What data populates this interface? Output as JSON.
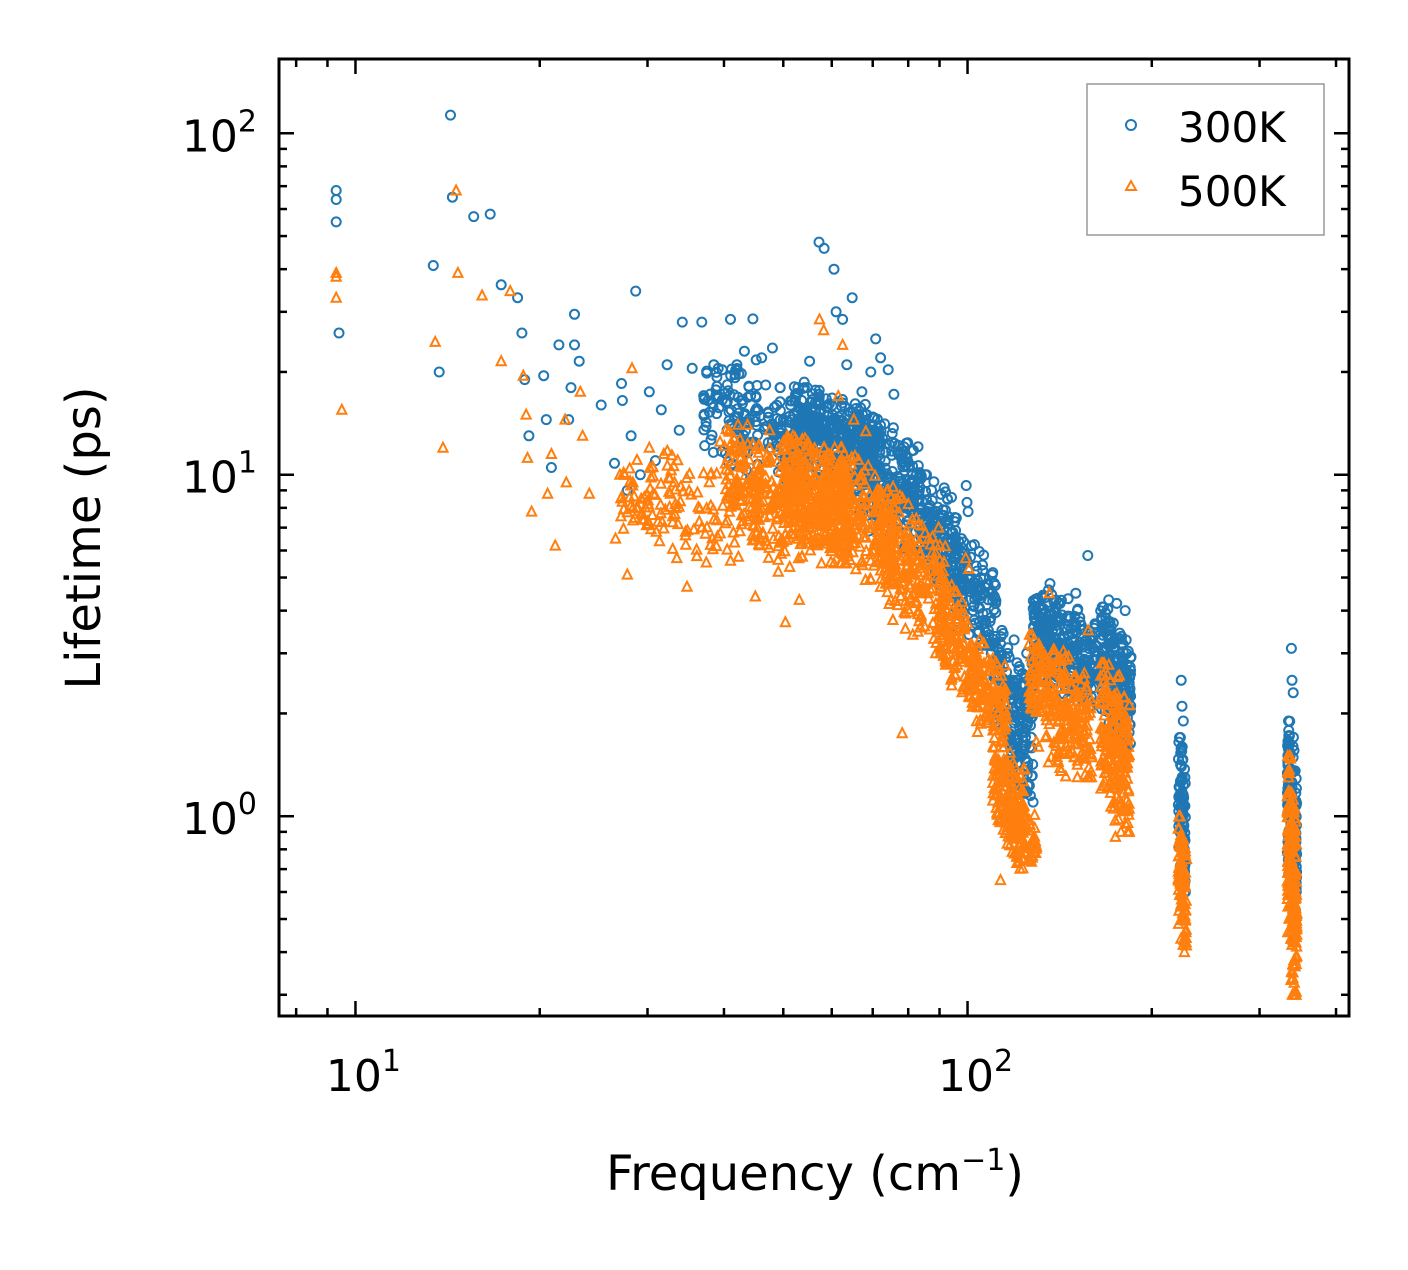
{
  "chart_data": {
    "type": "scatter",
    "title": "",
    "xlabel": "Frequency (cm",
    "xlabel_sup": "−1",
    "xlabel_end": ")",
    "ylabel": "Lifetime (ps)",
    "xscale": "log",
    "yscale": "log",
    "xlim": [
      7.5,
      420
    ],
    "ylim": [
      0.26,
      165
    ],
    "x_ticks": [
      {
        "value": 10,
        "base": "10",
        "exp": "1"
      },
      {
        "value": 100,
        "base": "10",
        "exp": "2"
      }
    ],
    "y_ticks": [
      {
        "value": 1,
        "base": "10",
        "exp": "0"
      },
      {
        "value": 10,
        "base": "10",
        "exp": "1"
      },
      {
        "value": 100,
        "base": "10",
        "exp": "2"
      }
    ],
    "legend_position": "top-right",
    "series": [
      {
        "name": "300K",
        "marker": "circle-open",
        "color": "#1f77b4",
        "points": [
          [
            9.3,
            68
          ],
          [
            9.3,
            64
          ],
          [
            9.3,
            55
          ],
          [
            9.4,
            26
          ],
          [
            13.4,
            41
          ],
          [
            13.7,
            20
          ],
          [
            14.3,
            113
          ],
          [
            14.4,
            65
          ],
          [
            15.6,
            57
          ],
          [
            16.6,
            58
          ],
          [
            17.3,
            36
          ],
          [
            18.4,
            33
          ],
          [
            18.7,
            26
          ],
          [
            18.9,
            19
          ],
          [
            19.2,
            13
          ],
          [
            20.3,
            19.5
          ],
          [
            20.5,
            14.5
          ],
          [
            20.9,
            10.5
          ],
          [
            21.5,
            24
          ],
          [
            22.3,
            14.5
          ],
          [
            22.5,
            18
          ],
          [
            22.8,
            29.5
          ],
          [
            22.8,
            24
          ],
          [
            23.2,
            21.5
          ],
          [
            25.2,
            16
          ],
          [
            26.5,
            10.8
          ],
          [
            27.2,
            18.5
          ],
          [
            27.3,
            16.5
          ],
          [
            27.8,
            9
          ],
          [
            28.2,
            13
          ],
          [
            28.7,
            34.5
          ],
          [
            29.2,
            10
          ],
          [
            30.2,
            17.5
          ],
          [
            30.9,
            11
          ],
          [
            31.6,
            15.5
          ],
          [
            32.3,
            21
          ],
          [
            33.8,
            13.5
          ],
          [
            34.2,
            28
          ],
          [
            35.5,
            20.5
          ],
          [
            36.8,
            28
          ],
          [
            38.5,
            21
          ],
          [
            39.2,
            17
          ],
          [
            41.0,
            28.5
          ],
          [
            42.0,
            21
          ],
          [
            43.2,
            23
          ],
          [
            44.6,
            28.6
          ],
          [
            46.1,
            22
          ],
          [
            48.0,
            23.5
          ],
          [
            49.4,
            18
          ],
          [
            52.0,
            15
          ],
          [
            55.2,
            21.5
          ],
          [
            57.2,
            48
          ],
          [
            58.3,
            46
          ],
          [
            60.5,
            40
          ],
          [
            61.0,
            30
          ],
          [
            62.5,
            28.5
          ],
          [
            63.5,
            21
          ],
          [
            64.8,
            33
          ],
          [
            67.2,
            17.5
          ],
          [
            69.5,
            20
          ],
          [
            70.8,
            25
          ],
          [
            72.1,
            22
          ],
          [
            74.2,
            20.3
          ],
          [
            75.8,
            17.2
          ],
          [
            99.5,
            9.3
          ],
          [
            99.8,
            8.3
          ],
          [
            100.2,
            7.8
          ],
          [
            101.5,
            6.2
          ],
          [
            108.5,
            4.5
          ],
          [
            113.2,
            3.2
          ],
          [
            120.5,
            2.5
          ],
          [
            125.1,
            2.3
          ],
          [
            136.4,
            4.8
          ],
          [
            150.3,
            4.5
          ],
          [
            157.2,
            5.8
          ],
          [
            170.1,
            4.3
          ],
          [
            175.3,
            4.2
          ],
          [
            181.0,
            4.0
          ],
          [
            223.4,
            2.5
          ],
          [
            224.1,
            2.1
          ],
          [
            225.2,
            1.9
          ],
          [
            338.2,
            3.1
          ],
          [
            339.0,
            2.5
          ],
          [
            340.5,
            2.3
          ]
        ],
        "clusters": [
          {
            "x": [
              37,
              56
            ],
            "y": [
              9,
              22
            ],
            "n": 220
          },
          {
            "x": [
              52,
              72
            ],
            "y": [
              9,
              18
            ],
            "n": 380
          },
          {
            "x": [
              66,
              84
            ],
            "y": [
              6,
              15
            ],
            "n": 240
          },
          {
            "x": [
              82,
              96
            ],
            "y": [
              4.5,
              10
            ],
            "n": 160
          },
          {
            "x": [
              95,
              112
            ],
            "y": [
              3,
              6.5
            ],
            "n": 140
          },
          {
            "x": [
              110,
              128
            ],
            "y": [
              1.5,
              3.5
            ],
            "n": 130
          },
          {
            "x": [
              116,
              128
            ],
            "y": [
              1.1,
              1.9
            ],
            "n": 50
          },
          {
            "x": [
              128,
              162
            ],
            "y": [
              2.1,
              4.6
            ],
            "n": 300
          },
          {
            "x": [
              165,
              185
            ],
            "y": [
              1.6,
              4.1
            ],
            "n": 240
          },
          {
            "x": [
              221,
              227
            ],
            "y": [
              0.6,
              1.7
            ],
            "n": 90
          },
          {
            "x": [
              333,
              345
            ],
            "y": [
              0.5,
              1.9
            ],
            "n": 200
          }
        ]
      },
      {
        "name": "500K",
        "marker": "triangle-open",
        "color": "#ff7f0e",
        "points": [
          [
            9.3,
            39
          ],
          [
            9.3,
            38
          ],
          [
            9.3,
            33
          ],
          [
            9.5,
            15.5
          ],
          [
            13.5,
            24.5
          ],
          [
            13.9,
            12
          ],
          [
            14.6,
            68
          ],
          [
            14.7,
            39
          ],
          [
            16.1,
            33.5
          ],
          [
            17.3,
            21.5
          ],
          [
            17.9,
            34.5
          ],
          [
            18.8,
            19.5
          ],
          [
            19.0,
            15
          ],
          [
            19.1,
            11.2
          ],
          [
            19.4,
            7.8
          ],
          [
            20.6,
            8.8
          ],
          [
            20.9,
            11.5
          ],
          [
            21.2,
            6.2
          ],
          [
            22.0,
            14.5
          ],
          [
            22.1,
            9.5
          ],
          [
            23.3,
            17.5
          ],
          [
            23.5,
            13
          ],
          [
            24.1,
            8.8
          ],
          [
            26.6,
            6.5
          ],
          [
            27.8,
            5.1
          ],
          [
            28.3,
            20.5
          ],
          [
            29.3,
            8.5
          ],
          [
            30.2,
            12
          ],
          [
            31.9,
            11.5
          ],
          [
            33.5,
            5.7
          ],
          [
            34.8,
            4.7
          ],
          [
            36.8,
            7
          ],
          [
            39.4,
            12.5
          ],
          [
            41.0,
            5.6
          ],
          [
            43.0,
            9
          ],
          [
            45.0,
            4.4
          ],
          [
            47.5,
            13.5
          ],
          [
            50.4,
            3.7
          ],
          [
            53.1,
            4.3
          ],
          [
            57.3,
            28.5
          ],
          [
            58.2,
            26.5
          ],
          [
            61.5,
            17
          ],
          [
            62.5,
            24
          ],
          [
            65.2,
            14.5
          ],
          [
            68.2,
            13.4
          ],
          [
            78.2,
            1.75
          ],
          [
            81.4,
            3.4
          ],
          [
            91.1,
            4.6
          ],
          [
            92.5,
            4
          ],
          [
            99.3,
            5.7
          ],
          [
            100.5,
            5.3
          ],
          [
            106.5,
            2.5
          ],
          [
            113.2,
            0.65
          ],
          [
            117.2,
            1.4
          ],
          [
            120.3,
            0.76
          ],
          [
            136.0,
            4.5
          ],
          [
            157.4,
            3.5
          ],
          [
            171.2,
            2.5
          ],
          [
            174.4,
            0.87
          ],
          [
            181.2,
            0.95
          ],
          [
            223.5,
            0.55
          ],
          [
            225.1,
            0.42
          ],
          [
            338.3,
            0.35
          ],
          [
            339.5,
            0.3
          ]
        ],
        "clusters": [
          {
            "x": [
              27,
              46
            ],
            "y": [
              5.5,
              12
            ],
            "n": 140
          },
          {
            "x": [
              40,
              54
            ],
            "y": [
              5.2,
              14
            ],
            "n": 220
          },
          {
            "x": [
              50,
              64
            ],
            "y": [
              5.5,
              13
            ],
            "n": 320
          },
          {
            "x": [
              58,
              76
            ],
            "y": [
              4.8,
              12
            ],
            "n": 260
          },
          {
            "x": [
              72,
              92
            ],
            "y": [
              3,
              9
            ],
            "n": 220
          },
          {
            "x": [
              90,
              102
            ],
            "y": [
              2.2,
              5
            ],
            "n": 120
          },
          {
            "x": [
              100,
              116
            ],
            "y": [
              1.6,
              3.3
            ],
            "n": 140
          },
          {
            "x": [
              110,
              124
            ],
            "y": [
              0.75,
              1.7
            ],
            "n": 150
          },
          {
            "x": [
              116,
              130
            ],
            "y": [
              0.68,
              1.2
            ],
            "n": 60
          },
          {
            "x": [
              126,
              160
            ],
            "y": [
              1.3,
              3.4
            ],
            "n": 260
          },
          {
            "x": [
              165,
              184
            ],
            "y": [
              0.9,
              2.8
            ],
            "n": 220
          },
          {
            "x": [
              221,
              228
            ],
            "y": [
              0.4,
              1.0
            ],
            "n": 90
          },
          {
            "x": [
              333,
              345
            ],
            "y": [
              0.3,
              1.5
            ],
            "n": 200
          }
        ]
      }
    ]
  }
}
